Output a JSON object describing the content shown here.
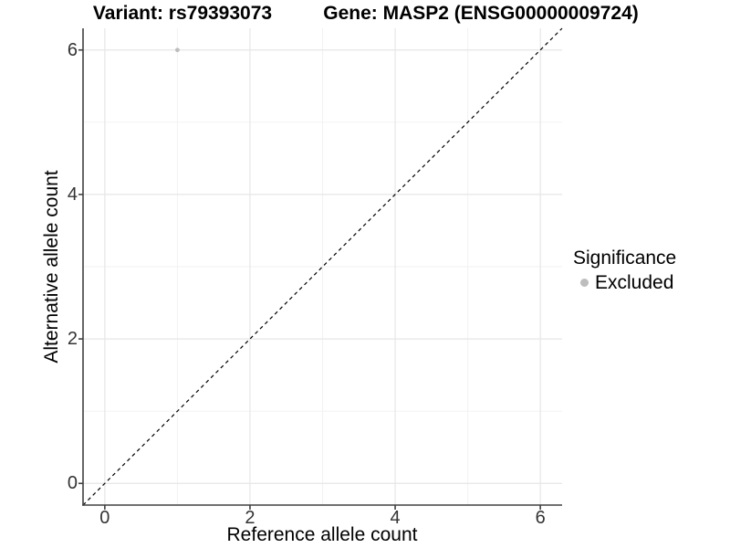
{
  "header": {
    "variant_title": "Variant: rs79393073",
    "gene_title": "Gene: MASP2 (ENSG00000009724)"
  },
  "chart_data": {
    "type": "scatter",
    "title_left": "Variant: rs79393073",
    "title_right": "Gene: MASP2 (ENSG00000009724)",
    "xlabel": "Reference allele count",
    "ylabel": "Alternative allele count",
    "xlim": [
      -0.3,
      6.3
    ],
    "ylim": [
      -0.3,
      6.3
    ],
    "x_ticks": [
      0,
      2,
      4,
      6
    ],
    "y_ticks": [
      0,
      2,
      4,
      6
    ],
    "x_minor_ticks": [
      1,
      3,
      5
    ],
    "y_minor_ticks": [
      1,
      3,
      5
    ],
    "grid": "major-and-minor",
    "series": [
      {
        "name": "Excluded",
        "color": "#bdbdbd",
        "points": [
          {
            "x": 1,
            "y": 6
          }
        ]
      }
    ],
    "reference_line": {
      "style": "dashed",
      "color": "#000000",
      "from": [
        -0.3,
        -0.3
      ],
      "to": [
        6.3,
        6.3
      ]
    },
    "legend": {
      "title": "Significance",
      "position": "right",
      "items": [
        {
          "label": "Excluded",
          "color": "#bdbdbd",
          "marker": "circle"
        }
      ]
    }
  },
  "colors": {
    "background": "#ffffff",
    "grid_major": "#e6e6e6",
    "grid_minor": "#f1f1f1",
    "axis_line": "#404040",
    "tick_label": "#333333",
    "title": "#000000",
    "point": "#bdbdbd"
  }
}
